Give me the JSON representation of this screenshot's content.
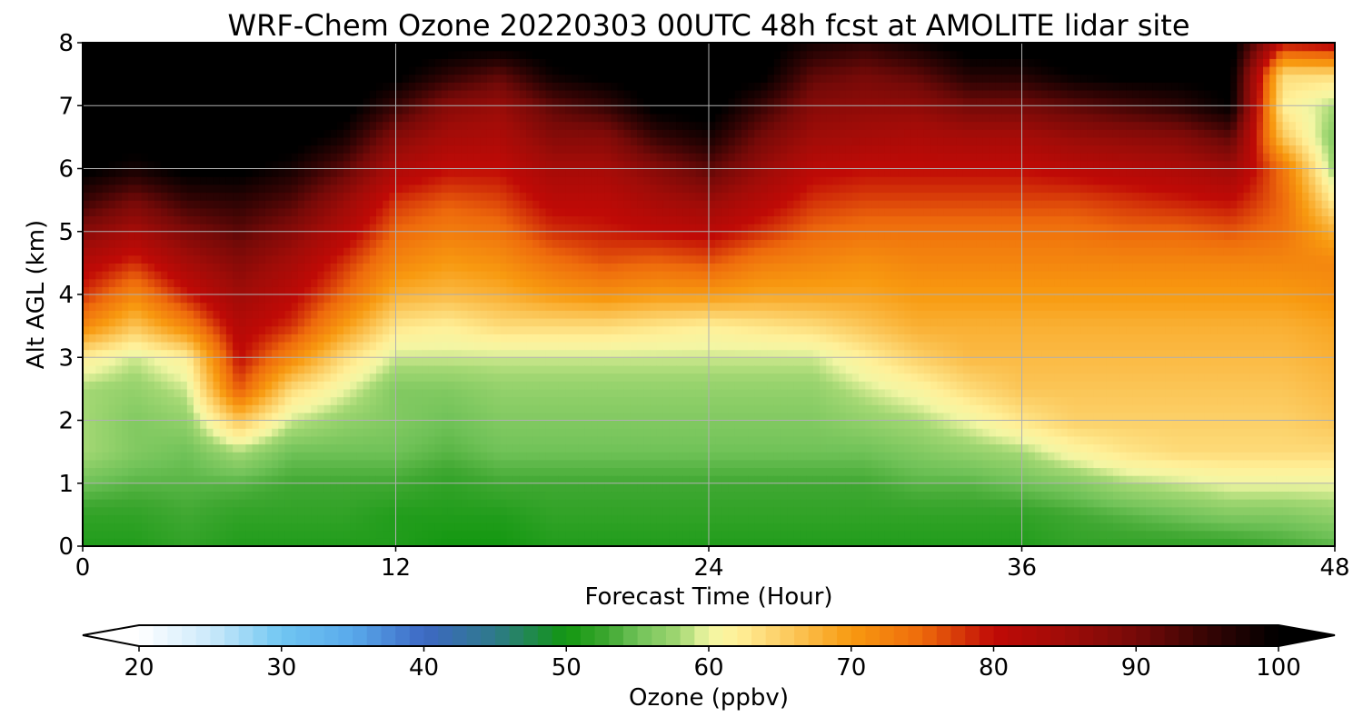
{
  "chart_data": {
    "type": "heatmap",
    "title": "WRF-Chem Ozone  20220303 00UTC 48h fcst at AMOLITE lidar site",
    "xlabel": "Forecast Time (Hour)",
    "ylabel": "Alt AGL (km)",
    "xlim": [
      0,
      48
    ],
    "ylim": [
      0,
      8
    ],
    "xticks": [
      0,
      12,
      24,
      36,
      48
    ],
    "xtick_labels": [
      "0",
      "12",
      "24",
      "36",
      "48"
    ],
    "yticks": [
      0,
      1,
      2,
      3,
      4,
      5,
      6,
      7,
      8
    ],
    "ytick_labels": [
      "0",
      "1",
      "2",
      "3",
      "4",
      "5",
      "6",
      "7",
      "8"
    ],
    "grid": true,
    "x_hours": [
      0,
      2,
      4,
      6,
      8,
      10,
      12,
      14,
      16,
      18,
      20,
      22,
      24,
      26,
      28,
      30,
      32,
      34,
      36,
      38,
      40,
      42,
      44,
      46,
      48
    ],
    "y_km": [
      0,
      0.5,
      1,
      1.5,
      2,
      2.5,
      3,
      3.5,
      4,
      4.5,
      5,
      5.5,
      6,
      6.5,
      7,
      7.5,
      8
    ],
    "values_ppbv": [
      [
        51,
        52,
        55,
        58,
        58,
        58,
        62,
        72,
        78,
        82,
        88,
        95,
        101,
        102,
        102,
        102,
        102
      ],
      [
        51,
        52,
        54,
        56,
        56,
        57,
        59,
        66,
        72,
        78,
        84,
        90,
        98,
        102,
        102,
        102,
        102
      ],
      [
        52,
        53,
        54,
        55,
        57,
        59,
        62,
        72,
        79,
        84,
        89,
        95,
        101,
        102,
        102,
        102,
        102
      ],
      [
        51,
        52,
        54,
        58,
        66,
        76,
        80,
        82,
        85,
        88,
        92,
        96,
        101,
        102,
        102,
        102,
        102
      ],
      [
        51,
        52,
        53,
        55,
        59,
        64,
        72,
        78,
        81,
        84,
        88,
        93,
        98,
        102,
        102,
        102,
        102
      ],
      [
        51,
        52,
        53,
        55,
        57,
        60,
        64,
        70,
        75,
        78,
        82,
        86,
        92,
        98,
        102,
        102,
        102
      ],
      [
        51,
        51,
        53,
        55,
        56,
        56,
        59,
        63,
        68,
        72,
        75,
        78,
        83,
        88,
        95,
        101,
        102
      ],
      [
        50,
        51,
        52,
        54,
        55,
        56,
        59,
        62,
        67,
        70,
        73,
        76,
        80,
        84,
        88,
        96,
        102
      ],
      [
        50,
        51,
        53,
        55,
        56,
        57,
        59,
        64,
        68,
        71,
        74,
        77,
        80,
        83,
        86,
        92,
        102
      ],
      [
        51,
        52,
        53,
        55,
        56,
        57,
        59,
        64,
        70,
        74,
        78,
        81,
        84,
        88,
        92,
        99,
        102
      ],
      [
        51,
        52,
        53,
        55,
        56,
        57,
        59,
        64,
        71,
        76,
        79,
        81,
        84,
        88,
        95,
        101,
        102
      ],
      [
        51,
        52,
        53,
        55,
        56,
        57,
        59,
        63,
        70,
        75,
        80,
        84,
        88,
        95,
        101,
        102,
        102
      ],
      [
        51,
        52,
        53,
        55,
        56,
        57,
        59,
        62,
        70,
        76,
        81,
        86,
        92,
        98,
        102,
        102,
        102
      ],
      [
        51,
        52,
        53,
        55,
        56,
        57,
        59,
        63,
        69,
        73,
        78,
        82,
        86,
        90,
        95,
        101,
        102
      ],
      [
        51,
        52,
        53,
        55,
        56,
        57,
        59,
        64,
        69,
        72,
        75,
        78,
        81,
        85,
        88,
        92,
        98
      ],
      [
        51,
        52,
        53,
        55,
        57,
        59,
        62,
        66,
        69,
        71,
        74,
        77,
        80,
        84,
        87,
        90,
        96
      ],
      [
        51,
        52,
        54,
        56,
        58,
        61,
        65,
        68,
        70,
        72,
        74,
        77,
        80,
        83,
        87,
        92,
        99
      ],
      [
        51,
        52,
        54,
        57,
        60,
        64,
        67,
        68,
        70,
        72,
        74,
        77,
        80,
        84,
        90,
        97,
        102
      ],
      [
        51,
        52,
        55,
        58,
        63,
        66,
        67,
        68,
        70,
        72,
        74,
        77,
        80,
        84,
        90,
        97,
        102
      ],
      [
        52,
        53,
        56,
        61,
        65,
        66,
        67,
        68,
        70,
        72,
        74,
        77,
        81,
        86,
        92,
        100,
        102
      ],
      [
        52,
        54,
        58,
        63,
        65,
        66,
        67,
        68,
        70,
        72,
        75,
        78,
        82,
        87,
        94,
        101,
        102
      ],
      [
        52,
        55,
        59,
        64,
        65,
        66,
        67,
        68,
        70,
        72,
        75,
        79,
        83,
        88,
        96,
        101,
        102
      ],
      [
        52,
        56,
        60,
        64,
        65,
        66,
        67,
        68,
        70,
        72,
        76,
        80,
        85,
        92,
        100,
        101,
        102
      ],
      [
        53,
        56,
        60,
        64,
        65,
        66,
        67,
        68,
        70,
        72,
        74,
        75,
        74,
        66,
        62,
        64,
        80
      ],
      [
        54,
        57,
        60,
        64,
        66,
        67,
        68,
        69,
        71,
        72,
        68,
        62,
        57,
        56,
        58,
        64,
        82
      ]
    ],
    "colorbar": {
      "label": "Ozone  (ppbv)",
      "min": 20,
      "max": 100,
      "ticks": [
        20,
        30,
        40,
        50,
        60,
        70,
        80,
        90,
        100
      ],
      "tick_labels": [
        "20",
        "30",
        "40",
        "50",
        "60",
        "70",
        "80",
        "90",
        "100"
      ],
      "extend": "both",
      "under_color": "#ffffff",
      "over_color": "#000000",
      "color_stops": [
        [
          20,
          "#ffffff"
        ],
        [
          25,
          "#cbe9fa"
        ],
        [
          30,
          "#70c6f2"
        ],
        [
          35,
          "#59a9eb"
        ],
        [
          40,
          "#3d68c4"
        ],
        [
          45,
          "#2e7a8a"
        ],
        [
          50,
          "#129710"
        ],
        [
          53,
          "#40a832"
        ],
        [
          55,
          "#70c258"
        ],
        [
          58,
          "#a4d874"
        ],
        [
          60,
          "#f2f6a4"
        ],
        [
          62,
          "#fff099"
        ],
        [
          65,
          "#fcd068"
        ],
        [
          70,
          "#f89a10"
        ],
        [
          75,
          "#ee6a0c"
        ],
        [
          80,
          "#c00a06"
        ],
        [
          85,
          "#a00c08"
        ],
        [
          90,
          "#760a08"
        ],
        [
          95,
          "#360404"
        ],
        [
          100,
          "#000000"
        ]
      ]
    }
  }
}
